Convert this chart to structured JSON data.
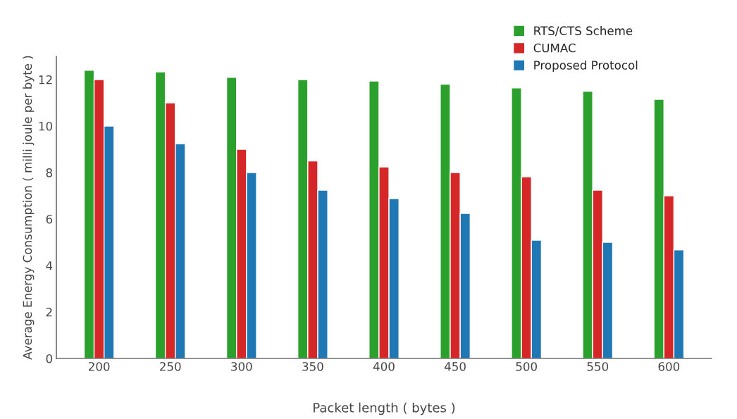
{
  "chart_data": {
    "type": "bar",
    "xlabel": "Packet length ( bytes )",
    "ylabel": "Average Energy Consumption ( milli joule per byte )",
    "categories": [
      "200",
      "250",
      "300",
      "350",
      "400",
      "450",
      "500",
      "550",
      "600"
    ],
    "series": [
      {
        "name": "RTS/CTS Scheme",
        "color": "#2ca02c",
        "values": [
          12.4,
          12.33,
          12.1,
          12.0,
          11.94,
          11.8,
          11.64,
          11.5,
          11.15
        ]
      },
      {
        "name": "CUMAC",
        "color": "#d62728",
        "values": [
          12.0,
          11.0,
          9.0,
          8.5,
          8.24,
          8.0,
          7.82,
          7.24,
          7.0
        ]
      },
      {
        "name": "Proposed Protocol",
        "color": "#1f77b4",
        "values": [
          10.0,
          9.24,
          8.0,
          7.24,
          6.88,
          6.24,
          5.09,
          5.0,
          4.67
        ]
      }
    ],
    "ylim": [
      0,
      13
    ],
    "yticks": [
      0,
      2,
      4,
      6,
      8,
      10,
      12
    ],
    "grid": false,
    "legend": "top right"
  }
}
